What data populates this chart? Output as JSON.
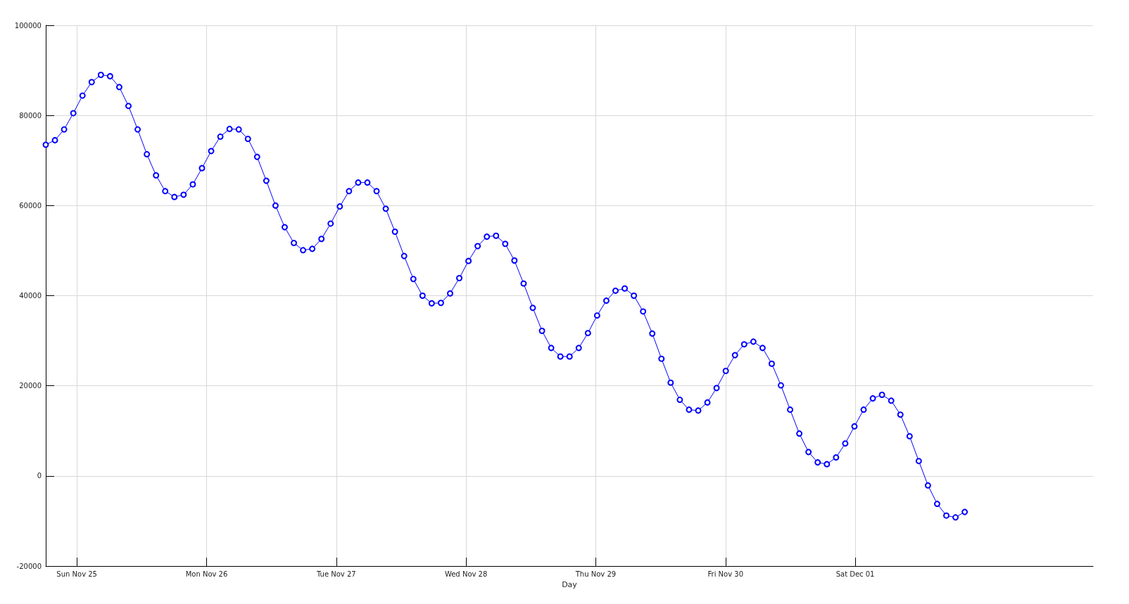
{
  "chart_data": {
    "type": "line",
    "xlabel": "Day",
    "x": [
      "--11-24T18:15",
      "--11-24T19:57",
      "--11-24T21:39",
      "--11-24T23:21",
      "--11-25T01:03",
      "--11-25T02:45",
      "--11-25T04:27",
      "--11-25T06:09",
      "--11-25T07:51",
      "--11-25T09:33",
      "--11-25T11:15",
      "--11-25T12:57",
      "--11-25T14:39",
      "--11-25T16:21",
      "--11-25T18:03",
      "--11-25T19:45",
      "--11-25T21:27",
      "--11-25T23:09",
      "--11-26T00:51",
      "--11-26T02:33",
      "--11-26T04:15",
      "--11-26T05:57",
      "--11-26T07:39",
      "--11-26T09:21",
      "--11-26T11:03",
      "--11-26T12:45",
      "--11-26T14:27",
      "--11-26T16:09",
      "--11-26T17:51",
      "--11-26T19:33",
      "--11-26T21:15",
      "--11-26T22:57",
      "--11-27T00:39",
      "--11-27T02:21",
      "--11-27T04:03",
      "--11-27T05:45",
      "--11-27T07:27",
      "--11-27T09:09",
      "--11-27T10:51",
      "--11-27T12:33",
      "--11-27T14:15",
      "--11-27T15:57",
      "--11-27T17:39",
      "--11-27T19:21",
      "--11-27T21:03",
      "--11-27T22:45",
      "--11-28T00:27",
      "--11-28T02:09",
      "--11-28T03:51",
      "--11-28T05:33",
      "--11-28T07:15",
      "--11-28T08:57",
      "--11-28T10:39",
      "--11-28T12:21",
      "--11-28T14:03",
      "--11-28T15:45",
      "--11-28T17:27",
      "--11-28T19:09",
      "--11-28T20:51",
      "--11-28T22:33",
      "--11-29T00:15",
      "--11-29T01:57",
      "--11-29T03:39",
      "--11-29T05:21",
      "--11-29T07:03",
      "--11-29T08:45",
      "--11-29T10:27",
      "--11-29T12:09",
      "--11-29T13:51",
      "--11-29T15:33",
      "--11-29T17:15",
      "--11-29T18:57",
      "--11-29T20:39",
      "--11-29T22:21",
      "--11-30T00:03",
      "--11-30T01:45",
      "--11-30T03:27",
      "--11-30T05:09",
      "--11-30T06:51",
      "--11-30T08:33",
      "--11-30T10:15",
      "--11-30T11:57",
      "--11-30T13:39",
      "--11-30T15:21",
      "--11-30T17:03",
      "--11-30T18:45",
      "--11-30T20:27",
      "--11-30T22:09",
      "--11-30T23:51",
      "--12-01T01:33",
      "--12-01T03:15",
      "--12-01T04:57",
      "--12-01T06:39",
      "--12-01T08:21",
      "--12-01T10:03",
      "--12-01T11:45",
      "--12-01T13:27",
      "--12-01T15:09",
      "--12-01T16:51",
      "--12-01T18:33",
      "--12-01T20:15"
    ],
    "series": [
      {
        "color": "#0000ff",
        "values": [
          73500,
          74500,
          76900,
          80500,
          84400,
          87400,
          89000,
          88700,
          86300,
          82100,
          76900,
          71400,
          66700,
          63200,
          61900,
          62400,
          64700,
          68300,
          72100,
          75300,
          77000,
          76900,
          74800,
          70800,
          65500,
          60000,
          55200,
          51700,
          50100,
          50400,
          52600,
          56000,
          59800,
          63200,
          65100,
          65100,
          63200,
          59300,
          54200,
          48800,
          43700,
          40000,
          38300,
          38400,
          40500,
          43900,
          47700,
          51000,
          53100,
          53300,
          51500,
          47800,
          42700,
          37300,
          32200,
          28400,
          26500,
          26500,
          28400,
          31700,
          35600,
          38900,
          41100,
          41600,
          40000,
          36500,
          31600,
          26000,
          20700,
          16900,
          14700,
          14500,
          16300,
          19500,
          23300,
          26800,
          29200,
          29800,
          28400,
          24900,
          20100,
          14700,
          9400,
          5300,
          3000,
          2600,
          4100,
          7200,
          11000,
          14700,
          17200,
          18000,
          16700,
          13600,
          8800,
          3300,
          -2100,
          -6200,
          -8800,
          -9200,
          -8000
        ]
      }
    ],
    "xlim": [
      "--11-24T18:15",
      "--12-02T20:00"
    ],
    "xticks": [
      {
        "value": "--11-25",
        "label": "Sun Nov 25"
      },
      {
        "value": "--11-26",
        "label": "Mon Nov 26"
      },
      {
        "value": "--11-27",
        "label": "Tue Nov 27"
      },
      {
        "value": "--11-28",
        "label": "Wed Nov 28"
      },
      {
        "value": "--11-29",
        "label": "Thu Nov 29"
      },
      {
        "value": "--11-30",
        "label": "Fri Nov 30"
      },
      {
        "value": "--12-01",
        "label": "Sat Dec 01"
      }
    ],
    "ylim": [
      -20000,
      100000
    ],
    "yticks": [
      -20000,
      0,
      20000,
      40000,
      60000,
      80000,
      100000
    ],
    "grid": true,
    "marker": "circle",
    "line_style": "solid"
  }
}
